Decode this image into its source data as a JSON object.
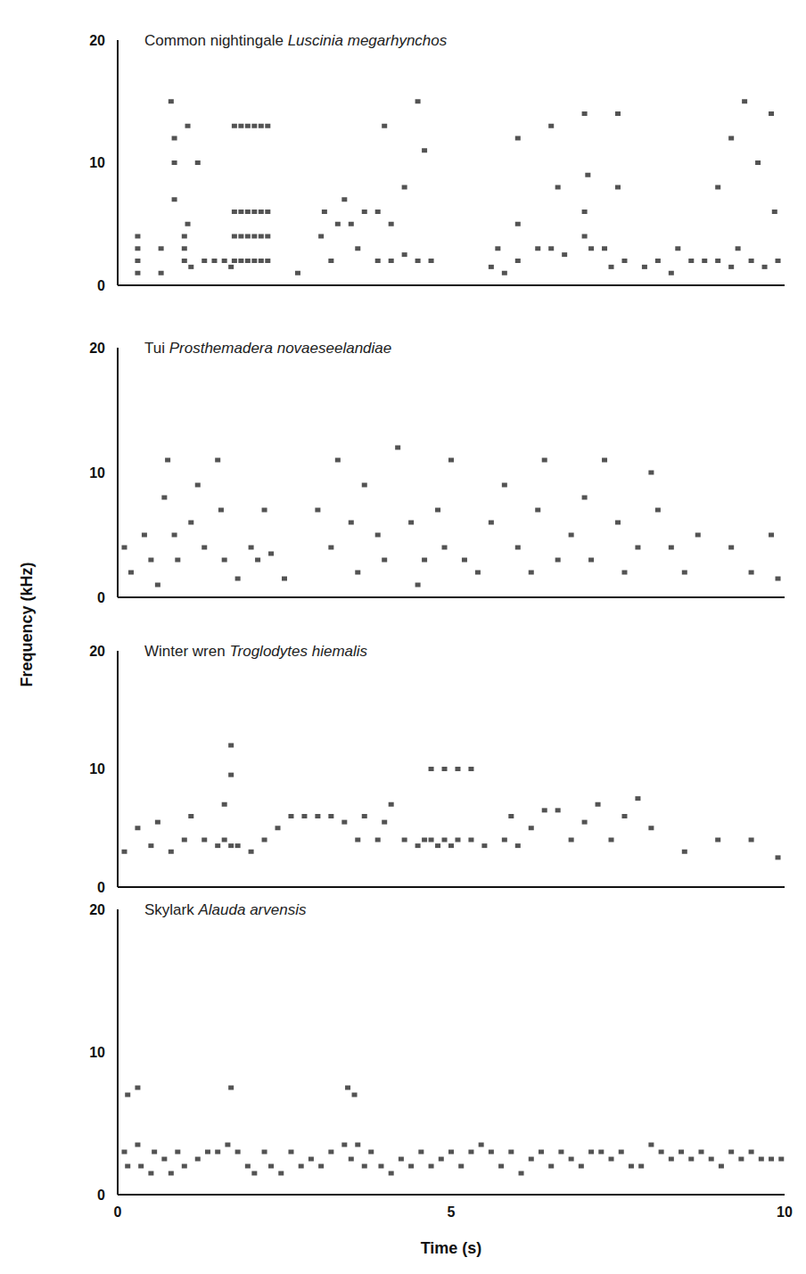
{
  "chart_data": [
    {
      "type": "scatter",
      "title": "Common nightingale",
      "subtitle": "Luscinia megarhynchos",
      "color": "#1a1a1a",
      "marker": "square",
      "xlim": [
        0,
        10
      ],
      "xticks": [
        0,
        5,
        10
      ],
      "ylim": [
        0,
        20
      ],
      "yticks": [
        0,
        10,
        20
      ],
      "tick_labels": "y",
      "x": [
        0.3,
        0.3,
        0.3,
        0.3,
        0.65,
        0.65,
        0.85,
        0.85,
        0.8,
        0.85,
        1.0,
        1.0,
        1.0,
        1.05,
        1.1,
        1.05,
        1.2,
        1.3,
        1.45,
        1.6,
        1.7,
        1.75,
        1.75,
        1.75,
        1.75,
        1.85,
        1.85,
        1.85,
        1.85,
        1.95,
        1.95,
        1.95,
        1.95,
        2.05,
        2.05,
        2.05,
        2.05,
        2.15,
        2.15,
        2.15,
        2.15,
        2.25,
        2.25,
        2.25,
        2.25,
        2.7,
        3.05,
        3.1,
        3.3,
        3.4,
        3.5,
        3.6,
        3.2,
        3.7,
        3.9,
        4.1,
        4.3,
        4.5,
        4.7,
        3.9,
        4.1,
        4.3,
        4.0,
        4.5,
        4.6,
        5.6,
        5.7,
        5.8,
        6.0,
        6.0,
        6.0,
        6.3,
        6.5,
        6.7,
        6.6,
        6.5,
        7.0,
        7.0,
        7.05,
        7.0,
        7.1,
        7.3,
        7.4,
        7.5,
        7.5,
        7.6,
        7.9,
        8.1,
        8.3,
        8.4,
        8.6,
        8.8,
        9.0,
        9.2,
        9.3,
        9.5,
        9.7,
        9.9,
        9.0,
        9.2,
        9.4,
        9.6,
        9.8,
        9.85
      ],
      "y": [
        1,
        2,
        3,
        4,
        1,
        3,
        7,
        10,
        15,
        12,
        2,
        3,
        4,
        5,
        1.5,
        13,
        10,
        2,
        2,
        2,
        1.5,
        2,
        4,
        6,
        13,
        2,
        4,
        6,
        13,
        2,
        4,
        6,
        13,
        2,
        4,
        6,
        13,
        2,
        4,
        6,
        13,
        2,
        4,
        6,
        13,
        1,
        4,
        6,
        5,
        7,
        5,
        3,
        2,
        6,
        2,
        2,
        2.5,
        2,
        2,
        6,
        5,
        8,
        13,
        15,
        11,
        1.5,
        3,
        1,
        2,
        5,
        12,
        3,
        3,
        2.5,
        8,
        13,
        4,
        6,
        9,
        14,
        3,
        3,
        1.5,
        14,
        8,
        2,
        1.5,
        2,
        1,
        3,
        2,
        2,
        2,
        1.5,
        3,
        2,
        1.5,
        2,
        8,
        12,
        15,
        10,
        14,
        6
      ]
    },
    {
      "type": "scatter",
      "title": "Tui",
      "subtitle": "Prosthemadera novaeseelandiae",
      "color": "#1a1a1a",
      "marker": "square",
      "xlim": [
        0,
        10
      ],
      "xticks": [
        0,
        5,
        10
      ],
      "ylim": [
        0,
        20
      ],
      "yticks": [
        0,
        10,
        20
      ],
      "tick_labels": "y",
      "x": [
        0.1,
        0.2,
        0.4,
        0.5,
        0.6,
        0.7,
        0.75,
        0.85,
        0.9,
        1.1,
        1.2,
        1.3,
        1.5,
        1.55,
        1.6,
        1.8,
        2.0,
        2.1,
        2.2,
        2.3,
        2.5,
        3.0,
        3.2,
        3.3,
        3.5,
        3.6,
        3.7,
        3.9,
        4.0,
        4.2,
        4.4,
        4.5,
        4.6,
        4.8,
        4.9,
        5.0,
        5.2,
        5.4,
        5.6,
        5.8,
        6.0,
        6.2,
        6.3,
        6.4,
        6.6,
        6.8,
        7.0,
        7.1,
        7.3,
        7.5,
        7.6,
        7.8,
        8.0,
        8.1,
        8.3,
        8.5,
        8.7,
        9.2,
        9.5,
        9.9,
        9.8
      ],
      "y": [
        4,
        2,
        5,
        3,
        1,
        8,
        11,
        5,
        3,
        6,
        9,
        4,
        11,
        7,
        3,
        1.5,
        4,
        3,
        7,
        3.5,
        1.5,
        7,
        4,
        11,
        6,
        2,
        9,
        5,
        3,
        12,
        6,
        1,
        3,
        7,
        4,
        11,
        3,
        2,
        6,
        9,
        4,
        2,
        7,
        11,
        3,
        5,
        8,
        3,
        11,
        6,
        2,
        4,
        10,
        7,
        4,
        2,
        5,
        4,
        2,
        1.5,
        5
      ]
    },
    {
      "type": "scatter",
      "title": "Winter wren",
      "subtitle": "Troglodytes hiemalis",
      "color": "#1a1a1a",
      "marker": "square",
      "xlim": [
        0,
        10
      ],
      "xticks": [
        0,
        5,
        10
      ],
      "ylim": [
        0,
        20
      ],
      "yticks": [
        0,
        10,
        20
      ],
      "tick_labels": "y",
      "x": [
        0.1,
        0.3,
        0.5,
        0.6,
        0.8,
        1.0,
        1.1,
        1.3,
        1.5,
        1.6,
        1.7,
        1.8,
        1.6,
        1.7,
        1.7,
        2.0,
        2.2,
        2.4,
        2.6,
        2.8,
        3.0,
        3.2,
        3.4,
        3.6,
        3.7,
        3.9,
        4.0,
        4.1,
        4.3,
        4.5,
        4.6,
        4.7,
        4.8,
        4.9,
        5.0,
        5.1,
        4.7,
        4.9,
        5.1,
        5.3,
        5.3,
        5.5,
        5.8,
        5.9,
        6.0,
        6.2,
        6.4,
        6.6,
        6.8,
        7.0,
        7.2,
        7.4,
        7.6,
        7.8,
        8.0,
        8.5,
        9.0,
        9.5,
        9.9
      ],
      "y": [
        3,
        5,
        3.5,
        5.5,
        3,
        4,
        6,
        4,
        3.5,
        4,
        3.5,
        3.5,
        7,
        9.5,
        12,
        3,
        4,
        5,
        6,
        6,
        6,
        6,
        5.5,
        4,
        6,
        4,
        5.5,
        7,
        4,
        3.5,
        4,
        4,
        3.5,
        4,
        3.5,
        4,
        10,
        10,
        10,
        10,
        4,
        3.5,
        4,
        6,
        3.5,
        5,
        6.5,
        6.5,
        4,
        5.5,
        7,
        4,
        6,
        7.5,
        5,
        3,
        4,
        4,
        2.5
      ]
    },
    {
      "type": "scatter",
      "title": "Skylark",
      "subtitle": "Alauda arvensis",
      "color": "#1a1a1a",
      "marker": "square",
      "xlim": [
        0,
        10
      ],
      "xticks": [
        0,
        5,
        10
      ],
      "ylim": [
        0,
        20
      ],
      "yticks": [
        0,
        10,
        20
      ],
      "xlabel": "Time (s)",
      "ylabel": "Frequency (kHz)",
      "x": [
        0.1,
        0.15,
        0.3,
        0.35,
        0.5,
        0.55,
        0.7,
        0.8,
        0.9,
        1.0,
        1.2,
        1.35,
        1.5,
        1.65,
        1.8,
        1.95,
        2.05,
        2.2,
        2.3,
        2.45,
        2.6,
        2.75,
        2.9,
        3.05,
        3.2,
        3.4,
        3.5,
        3.6,
        3.7,
        3.8,
        3.95,
        4.1,
        4.25,
        4.4,
        4.55,
        4.7,
        4.85,
        5.0,
        5.15,
        5.3,
        5.45,
        5.6,
        5.75,
        5.9,
        6.05,
        6.2,
        6.35,
        6.5,
        6.65,
        6.8,
        6.95,
        7.1,
        7.25,
        7.4,
        7.55,
        7.7,
        7.85,
        8.0,
        8.15,
        8.3,
        8.45,
        8.6,
        8.75,
        8.9,
        9.05,
        9.2,
        9.35,
        9.5,
        9.65,
        9.8,
        9.95,
        0.15,
        0.3,
        3.45,
        3.55,
        1.7
      ],
      "y": [
        3,
        2,
        3.5,
        2,
        1.5,
        3,
        2.5,
        1.5,
        3,
        2,
        2.5,
        3,
        3,
        3.5,
        3,
        2,
        1.5,
        3,
        2,
        1.5,
        3,
        2,
        2.5,
        2,
        3,
        3.5,
        2.5,
        3.5,
        2,
        3,
        2,
        1.5,
        2.5,
        2,
        3,
        2,
        2.5,
        3,
        2,
        3,
        3.5,
        3,
        2,
        3,
        1.5,
        2.5,
        3,
        2,
        3,
        2.5,
        2,
        3,
        3,
        2.5,
        3,
        2,
        2,
        3.5,
        3,
        2.5,
        3,
        2.5,
        3,
        2.5,
        2,
        3,
        2.5,
        3,
        2.5,
        2.5,
        2.5,
        7,
        7.5,
        7.5,
        7,
        7.5
      ]
    }
  ]
}
